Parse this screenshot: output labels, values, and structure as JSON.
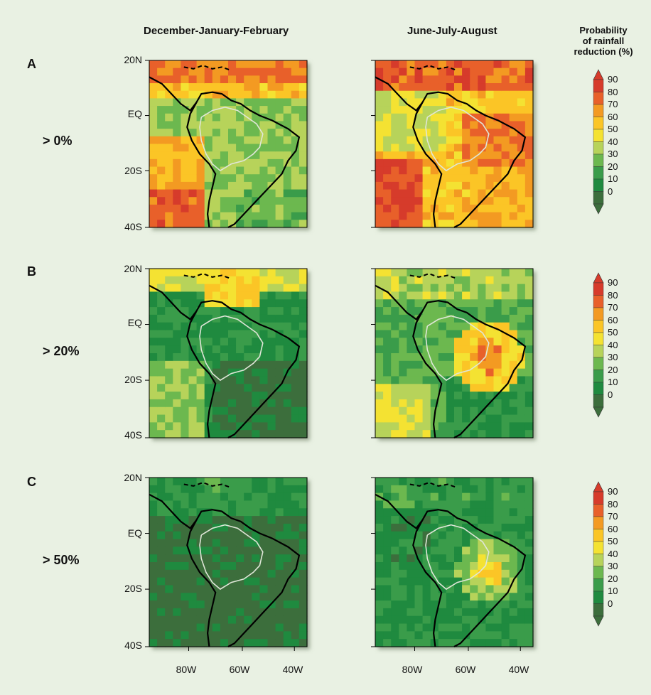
{
  "columns": [
    {
      "title": "December-January-February"
    },
    {
      "title": "June-July-August"
    }
  ],
  "rows": [
    {
      "letter": "A",
      "threshold": "> 0%"
    },
    {
      "letter": "B",
      "threshold": "> 20%"
    },
    {
      "letter": "C",
      "threshold": "> 50%"
    }
  ],
  "colorbar": {
    "title_lines": [
      "Probability",
      "of rainfall",
      "reduction (%)"
    ],
    "tick_labels": [
      "90",
      "80",
      "70",
      "60",
      "50",
      "40",
      "30",
      "20",
      "10",
      "0"
    ],
    "colors": [
      "#3c6e3c",
      "#1f8a3f",
      "#3a9c4a",
      "#6cb84f",
      "#b7d35a",
      "#f4e232",
      "#fbc526",
      "#f39a22",
      "#e8602a",
      "#d63b2b"
    ]
  },
  "chart_data": {
    "type": "heatmap",
    "panel_labels": [
      "A",
      "B",
      "C"
    ],
    "seasons": [
      "December-January-February",
      "June-July-August"
    ],
    "thresholds": [
      "> 0%",
      "> 20%",
      "> 50%"
    ],
    "y_tick_labels": [
      "20N",
      "EQ",
      "20S",
      "40S"
    ],
    "x_tick_labels": [
      "80W",
      "60W",
      "40W"
    ],
    "ylim_deg": [
      -40,
      20
    ],
    "xlim_deg": [
      -90,
      -30
    ],
    "colorbar_levels": [
      0,
      10,
      20,
      30,
      40,
      50,
      60,
      70,
      80,
      90
    ],
    "colorbar_title": "Probability of rainfall reduction (%)",
    "description_levels": {
      "A_DJF": "high (70-90) over north Caribbean and southern Pacific; low-moderate (20-50) over Amazon",
      "A_JJA": "high (60-90) over northeast Brazil, Pacific and north; moderate over Amazon",
      "B_DJF": "mostly low (0-20); moderate (40-70) along north coast",
      "B_JJA": "moderate-high (50-80) in east Brazil; low elsewhere",
      "C_DJF": "nearly all 0-10",
      "C_JJA": "moderate (30-50) in east Brazil; low elsewhere"
    }
  }
}
